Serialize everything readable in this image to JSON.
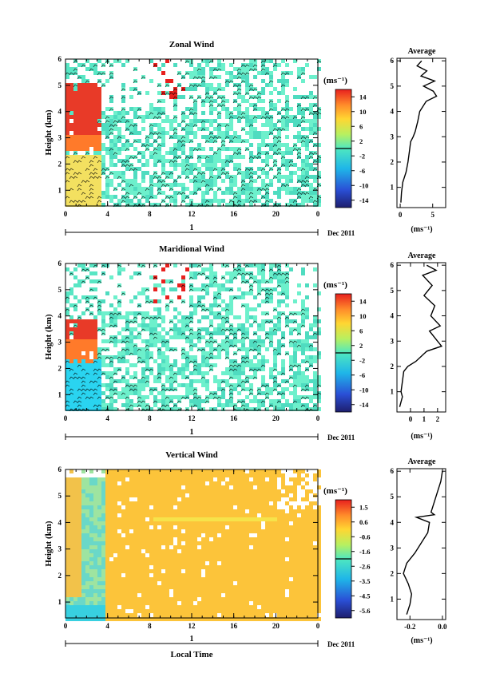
{
  "page": {
    "x_axis_title": "Local Time",
    "date_label": "Dec 2011",
    "day_label": "1"
  },
  "chart_data": [
    {
      "type": "heatmap",
      "title": "Zonal Wind",
      "ylabel": "Height (km)",
      "xlabel": "Local Time",
      "x_ticks": [
        "0",
        "4",
        "8",
        "12",
        "16",
        "20",
        "0"
      ],
      "xlim": [
        0,
        24
      ],
      "y_ticks": [
        "1",
        "2",
        "3",
        "4",
        "5",
        "6"
      ],
      "ylim": [
        0.4,
        6
      ],
      "colorbar": {
        "unit": "(ms⁻¹)",
        "ticks": [
          "14",
          "10",
          "6",
          "2",
          "-2",
          "-6",
          "-10",
          "-14"
        ],
        "range": [
          -16,
          16
        ]
      },
      "profile": {
        "title": "Average",
        "xlabel": "(ms⁻¹)",
        "x_ticks": [
          "0",
          "5"
        ],
        "xlim": [
          -0.5,
          7
        ],
        "y_ticks": [
          "1",
          "2",
          "3",
          "4",
          "5",
          "6"
        ],
        "heights": [
          0.4,
          0.8,
          1.2,
          1.6,
          2.0,
          2.4,
          2.8,
          3.0,
          3.2,
          3.6,
          4.0,
          4.4,
          4.6,
          4.8,
          5.0,
          5.2,
          5.4,
          5.6,
          5.8,
          6.0
        ],
        "values": [
          0.1,
          0.2,
          0.4,
          0.9,
          1.2,
          1.4,
          1.6,
          2.0,
          2.3,
          2.7,
          3.0,
          4.0,
          5.6,
          5.1,
          3.6,
          5.3,
          3.2,
          4.1,
          2.6,
          3.3
        ]
      }
    },
    {
      "type": "heatmap",
      "title": "Maridional Wind",
      "ylabel": "Height (km)",
      "xlabel": "Local Time",
      "x_ticks": [
        "0",
        "4",
        "8",
        "12",
        "16",
        "20",
        "0"
      ],
      "xlim": [
        0,
        24
      ],
      "y_ticks": [
        "1",
        "2",
        "3",
        "4",
        "5",
        "6"
      ],
      "ylim": [
        0.4,
        6
      ],
      "colorbar": {
        "unit": "(ms⁻¹)",
        "ticks": [
          "14",
          "10",
          "6",
          "2",
          "-2",
          "-6",
          "-10",
          "-14"
        ],
        "range": [
          -16,
          16
        ]
      },
      "profile": {
        "title": "Average",
        "xlabel": "(ms⁻¹)",
        "x_ticks": [
          "0",
          "1",
          "2"
        ],
        "xlim": [
          -1,
          2.6
        ],
        "y_ticks": [
          "1",
          "2",
          "3",
          "4",
          "5",
          "6"
        ],
        "heights": [
          0.4,
          0.8,
          1.0,
          1.4,
          1.8,
          2.0,
          2.2,
          2.6,
          2.8,
          3.0,
          3.4,
          3.6,
          4.0,
          4.4,
          4.8,
          5.2,
          5.6,
          5.8,
          6.0
        ],
        "values": [
          -0.8,
          -0.6,
          -0.7,
          -0.6,
          -0.5,
          -0.2,
          0.4,
          1.2,
          2.3,
          2.0,
          1.4,
          2.2,
          1.5,
          1.8,
          1.0,
          1.6,
          0.9,
          1.9,
          1.2
        ]
      }
    },
    {
      "type": "heatmap",
      "title": "Vertical Wind",
      "ylabel": "Height (km)",
      "xlabel": "Local Time",
      "x_ticks": [
        "0",
        "4",
        "8",
        "12",
        "16",
        "20",
        "0"
      ],
      "xlim": [
        0,
        24
      ],
      "y_ticks": [
        "1",
        "2",
        "3",
        "4",
        "5",
        "6"
      ],
      "ylim": [
        0.4,
        6
      ],
      "colorbar": {
        "unit": "(ms⁻¹)",
        "ticks": [
          "1.5",
          "0.6",
          "-0.6",
          "-1.6",
          "-2.6",
          "-3.5",
          "-4.5",
          "-5.6"
        ],
        "range": [
          -6,
          2
        ]
      },
      "profile": {
        "title": "Average",
        "xlabel": "(ms⁻¹)",
        "x_ticks": [
          "-0.2",
          "0.0"
        ],
        "xlim": [
          -0.28,
          0.02
        ],
        "y_ticks": [
          "1",
          "2",
          "3",
          "4",
          "5",
          "6"
        ],
        "heights": [
          0.4,
          0.8,
          1.2,
          1.6,
          2.0,
          2.4,
          2.8,
          3.2,
          3.6,
          4.0,
          4.2,
          4.3,
          4.4,
          4.8,
          5.2,
          5.6,
          6.0
        ],
        "values": [
          -0.22,
          -0.2,
          -0.19,
          -0.21,
          -0.24,
          -0.22,
          -0.17,
          -0.13,
          -0.09,
          -0.08,
          -0.16,
          -0.05,
          -0.07,
          -0.05,
          -0.03,
          -0.01,
          0.0
        ]
      }
    }
  ]
}
